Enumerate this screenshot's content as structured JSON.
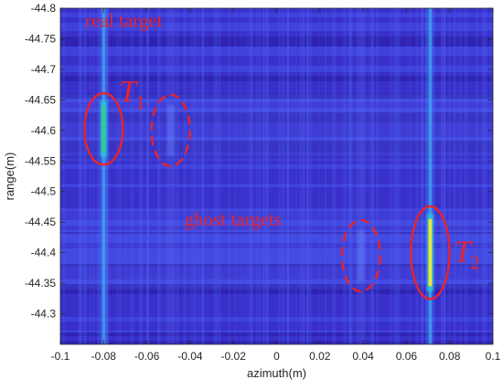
{
  "chart_data": {
    "type": "heatmap",
    "xlabel": "azimuth(m)",
    "ylabel": "range(m)",
    "xlim": [
      -0.1,
      0.1
    ],
    "ylim": [
      -44.8,
      -44.25
    ],
    "y_reversed": true,
    "x_ticks": [
      "-0.1",
      "-0.08",
      "-0.06",
      "-0.04",
      "-0.02",
      "0",
      "0.02",
      "0.04",
      "0.06",
      "0.08",
      "0.1"
    ],
    "y_ticks": [
      "-44.8",
      "-44.75",
      "-44.7",
      "-44.65",
      "-44.6",
      "-44.55",
      "-44.5",
      "-44.45",
      "-44.4",
      "-44.35",
      "-44.3"
    ],
    "colormap": "parula",
    "background_color": "#3a2fc7",
    "grid": false,
    "targets": [
      {
        "label_main": "T",
        "label_sub": "1",
        "kind": "real",
        "azimuth": -0.08,
        "range_from": -44.64,
        "range_to": -44.565,
        "peak_color": "#2fcf8d"
      },
      {
        "label_main": "T",
        "label_sub": "2",
        "kind": "real",
        "azimuth": 0.071,
        "range_from": -44.455,
        "range_to": -44.345,
        "peak_color": "#e8e83a"
      }
    ],
    "ghosts": [
      {
        "azimuth": -0.049,
        "range": -44.6
      },
      {
        "azimuth": 0.039,
        "range": -44.395
      }
    ],
    "annotations": [
      {
        "text": "real target",
        "azimuth": -0.08,
        "range": -44.78
      },
      {
        "text": "ghost targets",
        "azimuth": -0.0,
        "range": -44.455
      }
    ]
  }
}
